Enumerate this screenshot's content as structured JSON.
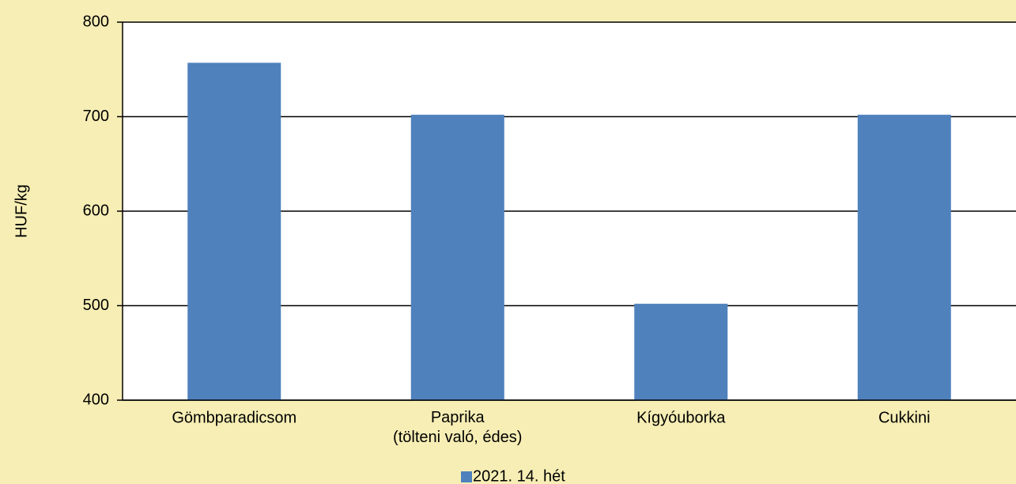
{
  "chart_data": {
    "type": "bar",
    "y_axis_label": "HUF/kg",
    "categories": [
      "Gömbparadicsom",
      "Paprika\n(tölteni való, édes)",
      "Kígyóuborka",
      "Cukkini"
    ],
    "series": [
      {
        "name": "2021. 14. hét",
        "color": "#4f81bd",
        "values": [
          757,
          702,
          502,
          702
        ]
      }
    ],
    "ylim": [
      400,
      800
    ],
    "yticks": [
      400,
      500,
      600,
      700,
      800
    ],
    "grid": true,
    "legend": "bottom"
  }
}
